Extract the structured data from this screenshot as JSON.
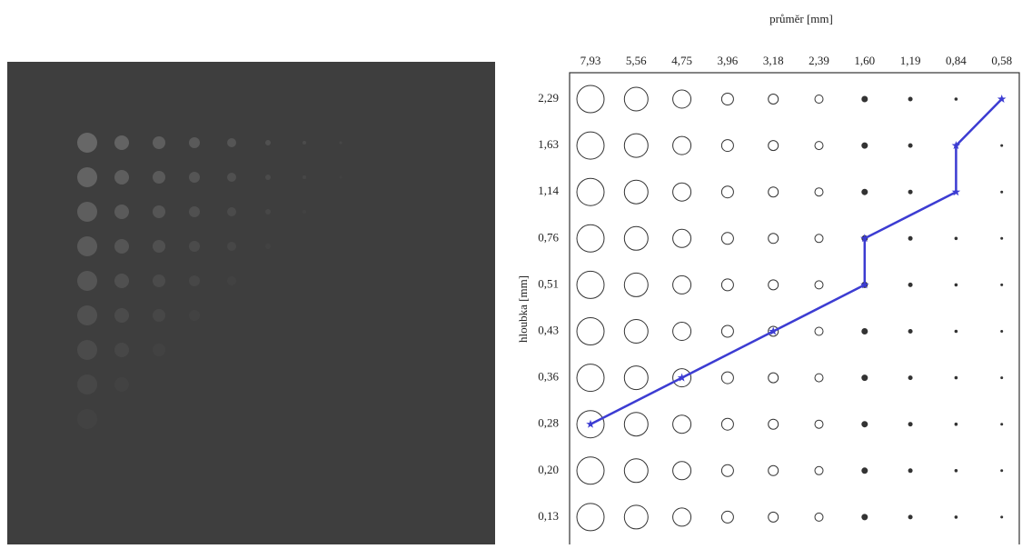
{
  "chart_data": {
    "type": "contrast-detail",
    "title": "průměr [mm]",
    "y_label": "hloubka [mm]",
    "categories": [
      "7,93",
      "5,56",
      "4,75",
      "3,96",
      "3,18",
      "2,39",
      "1,60",
      "1,19",
      "0,84",
      "0,58"
    ],
    "y_categories": [
      "2,29",
      "1,63",
      "1,14",
      "0,76",
      "0,51",
      "0,43",
      "0,36",
      "0,28",
      "0,20",
      "0,13"
    ],
    "series": [
      {
        "color": "#3c3cd2",
        "x": [
          "7,93",
          "4,75",
          "3,18",
          "1,60",
          "1,60",
          "0,84",
          "0,84",
          "0,58"
        ],
        "values": [
          "0,28",
          "0,36",
          "0,43",
          "0,51",
          "0,76",
          "1,14",
          "1,63",
          "2,29"
        ]
      }
    ]
  }
}
